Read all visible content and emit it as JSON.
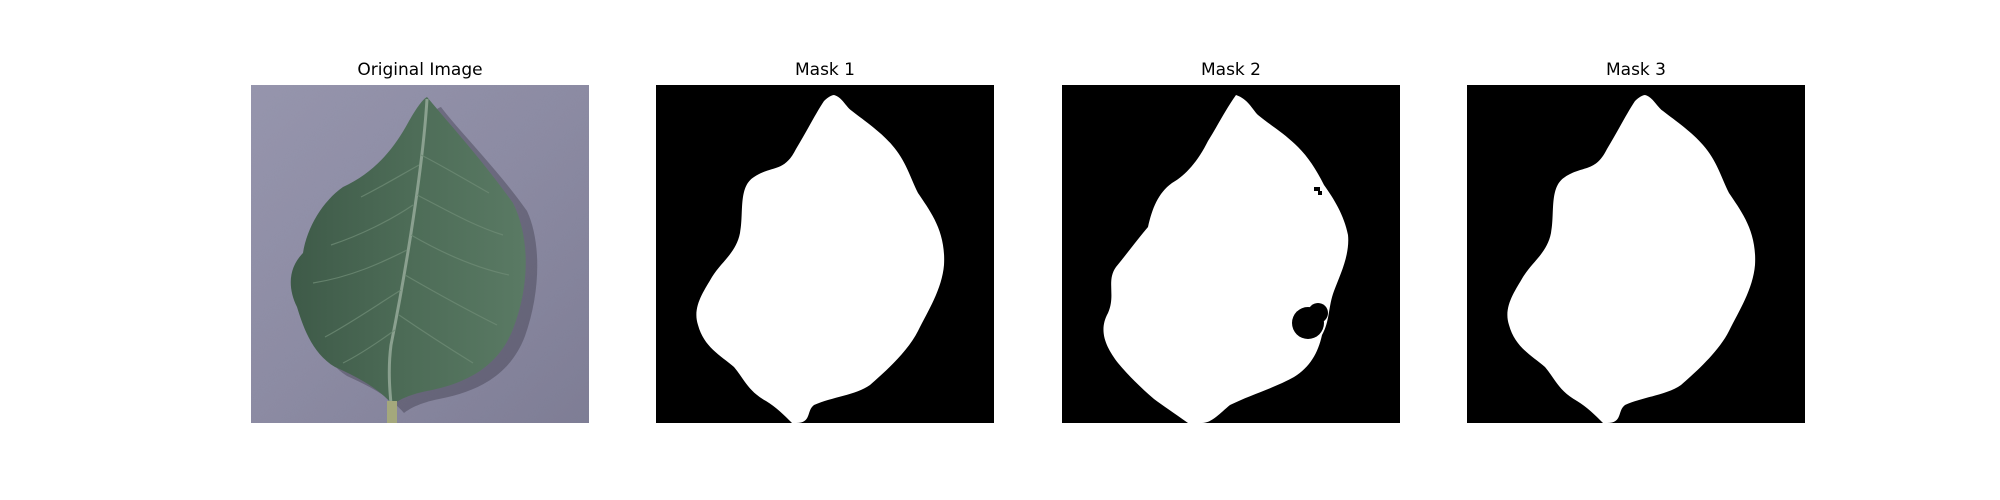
{
  "figure": {
    "panels": [
      {
        "title": "Original Image",
        "kind": "photo",
        "subject": "leaf"
      },
      {
        "title": "Mask 1",
        "kind": "mask"
      },
      {
        "title": "Mask 2",
        "kind": "mask"
      },
      {
        "title": "Mask 3",
        "kind": "mask"
      }
    ]
  },
  "colors": {
    "background": "#ffffff",
    "mask_bg": "#000000",
    "mask_fg": "#ffffff",
    "leaf": "#4a6a55",
    "leaf_dark": "#3a5644",
    "photo_bg": "#8f8ea6"
  }
}
